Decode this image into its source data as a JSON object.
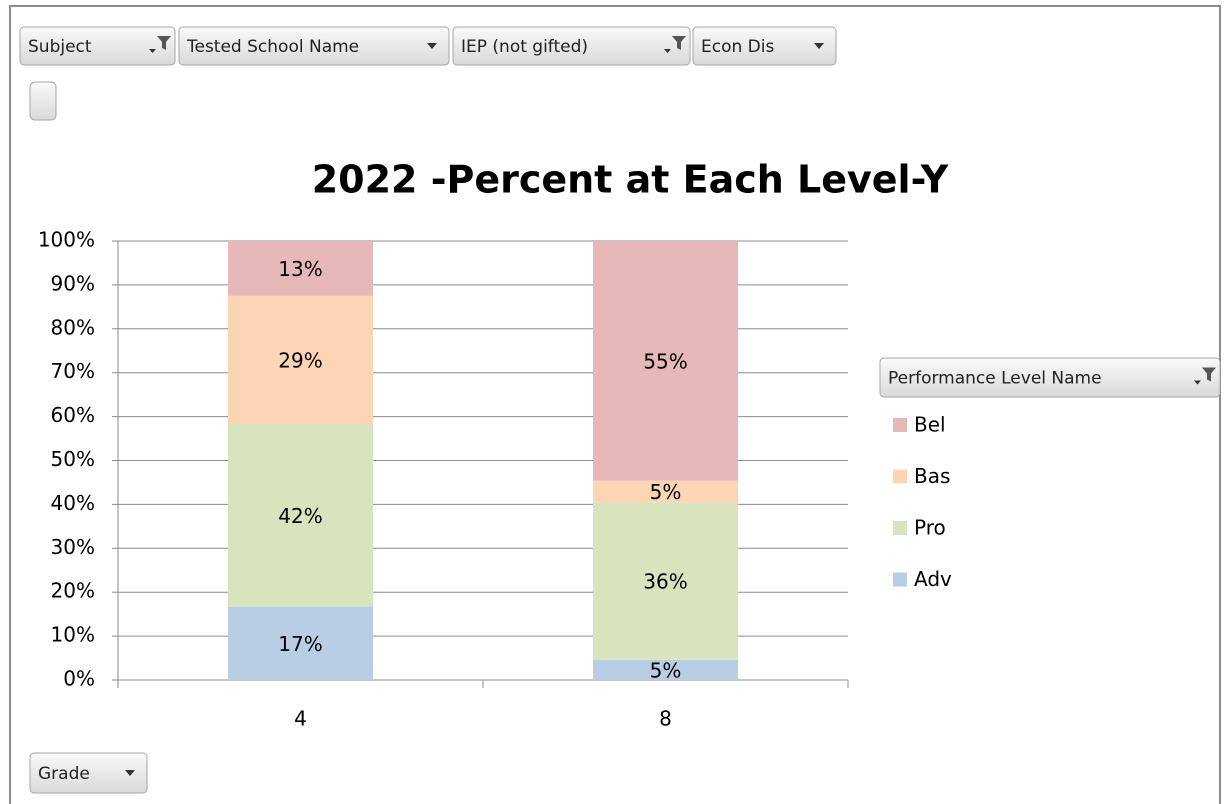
{
  "chart_data": {
    "type": "stacked_bar",
    "title": "2022 -Percent at Each Level-Y",
    "filter_buttons": [
      "Subject",
      "Tested School Name",
      "IEP (not gifted)",
      "Econ Dis"
    ],
    "legend_title": "Performance Level Name",
    "category_button": "Grade",
    "categories": [
      "4",
      "8"
    ],
    "series": [
      {
        "name": "Adv",
        "color": "#b9cde5",
        "values": [
          16.7,
          4.6
        ],
        "value_labels": [
          "17%",
          "5%"
        ]
      },
      {
        "name": "Pro",
        "color": "#d7e4bd",
        "values": [
          41.6,
          35.9
        ],
        "value_labels": [
          "42%",
          "36%"
        ]
      },
      {
        "name": "Bas",
        "color": "#fcd5b5",
        "values": [
          29.2,
          4.9
        ],
        "value_labels": [
          "29%",
          "5%"
        ]
      },
      {
        "name": "Bel",
        "color": "#e6b9b8",
        "values": [
          12.5,
          54.6
        ],
        "value_labels": [
          "13%",
          "55%"
        ]
      }
    ],
    "ylim": [
      0,
      100
    ],
    "yticks": [
      {
        "value": 0,
        "label": "0%"
      },
      {
        "value": 10,
        "label": "10%"
      },
      {
        "value": 20,
        "label": "20%"
      },
      {
        "value": 30,
        "label": "30%"
      },
      {
        "value": 40,
        "label": "40%"
      },
      {
        "value": 50,
        "label": "50%"
      },
      {
        "value": 60,
        "label": "60%"
      },
      {
        "value": 70,
        "label": "70%"
      },
      {
        "value": 80,
        "label": "80%"
      },
      {
        "value": 90,
        "label": "90%"
      },
      {
        "value": 100,
        "label": "100%"
      }
    ],
    "grid": true
  }
}
